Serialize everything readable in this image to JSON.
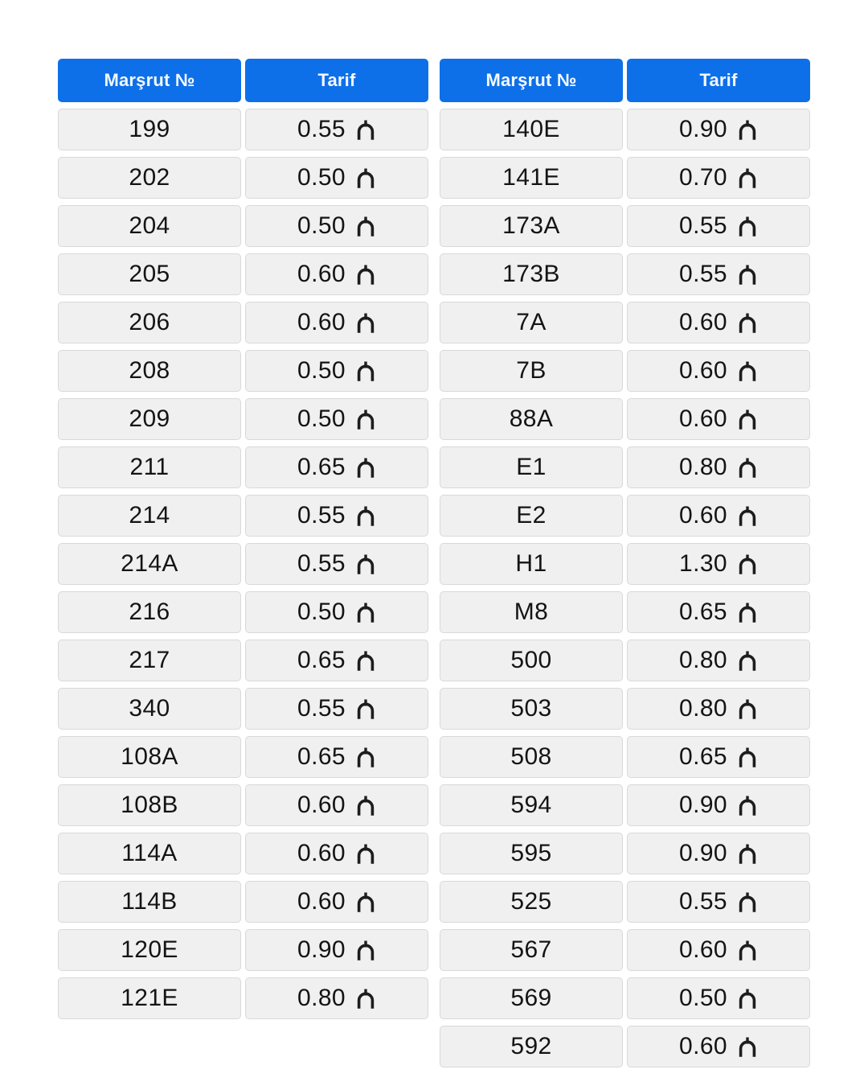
{
  "header": {
    "route_label": "Marşrut №",
    "tariff_label": "Tarif"
  },
  "currency": {
    "name": "Azerbaijani manat",
    "icon": "manat-icon"
  },
  "colors": {
    "page_bg": "#ffffff",
    "header_bg": "#0d70e8",
    "header_text": "#f4f8fe",
    "cell_bg": "#f0f0f1",
    "cell_border": "#d9d9dc",
    "text": "#141414",
    "symbol": "#1d1d1f"
  },
  "chart_data": {
    "type": "table",
    "title": "",
    "columns": [
      "Marşrut №",
      "Tarif"
    ],
    "currency": "manat",
    "tables": [
      {
        "side": "left",
        "rows": [
          {
            "route": "199",
            "tariff": "0.55"
          },
          {
            "route": "202",
            "tariff": "0.50"
          },
          {
            "route": "204",
            "tariff": "0.50"
          },
          {
            "route": "205",
            "tariff": "0.60"
          },
          {
            "route": "206",
            "tariff": "0.60"
          },
          {
            "route": "208",
            "tariff": "0.50"
          },
          {
            "route": "209",
            "tariff": "0.50"
          },
          {
            "route": "211",
            "tariff": "0.65"
          },
          {
            "route": "214",
            "tariff": "0.55"
          },
          {
            "route": "214A",
            "tariff": "0.55"
          },
          {
            "route": "216",
            "tariff": "0.50"
          },
          {
            "route": "217",
            "tariff": "0.65"
          },
          {
            "route": "340",
            "tariff": "0.55"
          },
          {
            "route": "108A",
            "tariff": "0.65"
          },
          {
            "route": "108B",
            "tariff": "0.60"
          },
          {
            "route": "114A",
            "tariff": "0.60"
          },
          {
            "route": "114B",
            "tariff": "0.60"
          },
          {
            "route": "120E",
            "tariff": "0.90"
          },
          {
            "route": "121E",
            "tariff": "0.80"
          }
        ]
      },
      {
        "side": "right",
        "rows": [
          {
            "route": "140E",
            "tariff": "0.90"
          },
          {
            "route": "141E",
            "tariff": "0.70"
          },
          {
            "route": "173A",
            "tariff": "0.55"
          },
          {
            "route": "173B",
            "tariff": "0.55"
          },
          {
            "route": "7A",
            "tariff": "0.60"
          },
          {
            "route": "7B",
            "tariff": "0.60"
          },
          {
            "route": "88A",
            "tariff": "0.60"
          },
          {
            "route": "E1",
            "tariff": "0.80"
          },
          {
            "route": "E2",
            "tariff": "0.60"
          },
          {
            "route": "H1",
            "tariff": "1.30"
          },
          {
            "route": "M8",
            "tariff": "0.65"
          },
          {
            "route": "500",
            "tariff": "0.80"
          },
          {
            "route": "503",
            "tariff": "0.80"
          },
          {
            "route": "508",
            "tariff": "0.65"
          },
          {
            "route": "594",
            "tariff": "0.90"
          },
          {
            "route": "595",
            "tariff": "0.90"
          },
          {
            "route": "525",
            "tariff": "0.55"
          },
          {
            "route": "567",
            "tariff": "0.60"
          },
          {
            "route": "569",
            "tariff": "0.50"
          },
          {
            "route": "592",
            "tariff": "0.60"
          }
        ]
      }
    ]
  }
}
